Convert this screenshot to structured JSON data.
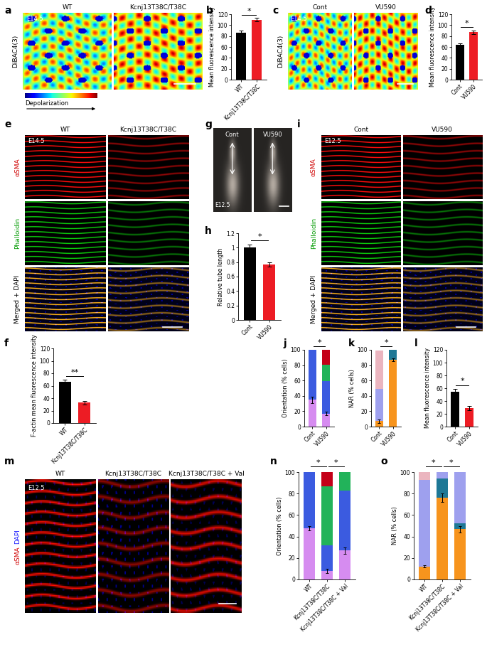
{
  "chart_data": [
    {
      "label": "b",
      "type": "bar",
      "categories": [
        "WT",
        "Kcnj13T38C/T38C"
      ],
      "values": [
        86,
        110
      ],
      "errors": [
        4,
        3
      ],
      "colors": [
        "#000000",
        "#ed1c24"
      ],
      "ylabel": "Mean fluorescence intensity",
      "ylim": [
        0,
        120
      ],
      "yticks": [
        0,
        20,
        40,
        60,
        80,
        100,
        120
      ],
      "significance": [
        {
          "text": "*",
          "between": [
            "WT",
            "Kcnj13T38C/T38C"
          ]
        }
      ]
    },
    {
      "label": "d",
      "type": "bar",
      "categories": [
        "Cont",
        "VU590"
      ],
      "values": [
        64,
        87
      ],
      "errors": [
        2,
        3
      ],
      "colors": [
        "#000000",
        "#ed1c24"
      ],
      "ylabel": "Mean fluorescence intensity",
      "ylim": [
        0,
        120
      ],
      "yticks": [
        0,
        20,
        40,
        60,
        80,
        100,
        120
      ],
      "significance": [
        {
          "text": "*",
          "between": [
            "Cont",
            "VU590"
          ]
        }
      ]
    },
    {
      "label": "f",
      "type": "bar",
      "categories": [
        "WT",
        "Kcnj13T38C/T38C"
      ],
      "values": [
        66,
        33
      ],
      "errors": [
        4,
        3
      ],
      "colors": [
        "#000000",
        "#ed1c24"
      ],
      "ylabel": "F-actin mean fluorescence intensity",
      "ylim": [
        0,
        120
      ],
      "yticks": [
        0,
        20,
        40,
        60,
        80,
        100,
        120
      ],
      "significance": [
        {
          "text": "**",
          "between": [
            "WT",
            "Kcnj13T38C/T38C"
          ]
        }
      ]
    },
    {
      "label": "h",
      "type": "bar",
      "categories": [
        "Cont",
        "VU590"
      ],
      "values": [
        1,
        0.77
      ],
      "errors": [
        0.04,
        0.03
      ],
      "colors": [
        "#000000",
        "#ed1c24"
      ],
      "ylabel": "Relative tube length",
      "ylim": [
        0,
        1.2
      ],
      "yticks": [
        0,
        0.2,
        0.4,
        0.6,
        0.8,
        1,
        1.2
      ],
      "significance": [
        {
          "text": "*",
          "between": [
            "Cont",
            "VU590"
          ]
        }
      ]
    },
    {
      "label": "j",
      "type": "bar",
      "stacked": true,
      "categories": [
        "Cont",
        "VU590"
      ],
      "ylabel": "Orientation (% cells)",
      "ylim": [
        0,
        100
      ],
      "yticks": [
        0,
        20,
        40,
        60,
        80,
        100
      ],
      "series": [
        {
          "color": "#d68cf0",
          "values": [
            35,
            17
          ],
          "errors": [
            4,
            2
          ]
        },
        {
          "color": "#3b5be0",
          "values": [
            65,
            42
          ]
        },
        {
          "color": "#22b35a",
          "values": [
            0,
            22
          ]
        },
        {
          "color": "#c40018",
          "values": [
            0,
            19
          ]
        }
      ],
      "significance": [
        {
          "text": "*",
          "between": [
            "Cont",
            "VU590"
          ]
        }
      ]
    },
    {
      "label": "k",
      "type": "bar",
      "stacked": true,
      "categories": [
        "Cont",
        "VU590"
      ],
      "ylabel": "NAR (% cells)",
      "ylim": [
        0,
        100
      ],
      "yticks": [
        0,
        20,
        40,
        60,
        80,
        100
      ],
      "series": [
        {
          "color": "#f7941d",
          "values": [
            7,
            87
          ],
          "errors": [
            2,
            2
          ]
        },
        {
          "color": "#1e7896",
          "values": [
            0,
            13
          ]
        },
        {
          "color": "#9ea0ee",
          "values": [
            42,
            0
          ]
        },
        {
          "color": "#ebb5bf",
          "values": [
            50,
            0
          ]
        }
      ],
      "significance": [
        {
          "text": "*",
          "between": [
            "Cont",
            "VU590"
          ]
        }
      ]
    },
    {
      "label": "l",
      "type": "bar",
      "categories": [
        "Cont",
        "VU590"
      ],
      "values": [
        55,
        29
      ],
      "errors": [
        4,
        3
      ],
      "colors": [
        "#000000",
        "#ed1c24"
      ],
      "ylabel": "Mean fluorescence intensity",
      "ylim": [
        0,
        120
      ],
      "yticks": [
        0,
        20,
        40,
        60,
        80,
        100,
        120
      ],
      "significance": [
        {
          "text": "*",
          "between": [
            "Cont",
            "VU590"
          ]
        }
      ]
    },
    {
      "label": "n",
      "type": "bar",
      "stacked": true,
      "categories": [
        "WT",
        "Kcnj13T38C/T38C",
        "Kcnj13T38C/T38C + Val"
      ],
      "ylabel": "Orientation (% cells)",
      "ylim": [
        0,
        100
      ],
      "yticks": [
        0,
        20,
        40,
        60,
        80,
        100
      ],
      "series": [
        {
          "color": "#d68cf0",
          "values": [
            48,
            8,
            27
          ],
          "errors": [
            2,
            2,
            3
          ]
        },
        {
          "color": "#3b5be0",
          "values": [
            52,
            24,
            56
          ]
        },
        {
          "color": "#22b35a",
          "values": [
            0,
            55,
            17
          ]
        },
        {
          "color": "#c40018",
          "values": [
            0,
            13,
            0
          ]
        }
      ],
      "significance": [
        {
          "text": "*",
          "between": [
            "WT",
            "Kcnj13T38C/T38C"
          ]
        },
        {
          "text": "*",
          "between": [
            "Kcnj13T38C/T38C",
            "Kcnj13T38C/T38C + Val"
          ]
        }
      ]
    },
    {
      "label": "o",
      "type": "bar",
      "stacked": true,
      "categories": [
        "WT",
        "Kcnj13T38C/T38C",
        "Kcnj13T38C/T38C + Val"
      ],
      "ylabel": "NAR (% cells)",
      "ylim": [
        0,
        100
      ],
      "yticks": [
        0,
        20,
        40,
        60,
        80,
        100
      ],
      "series": [
        {
          "color": "#f7941d",
          "values": [
            12,
            76,
            47
          ],
          "errors": [
            1,
            4,
            3
          ]
        },
        {
          "color": "#1e7896",
          "values": [
            0,
            18,
            5
          ]
        },
        {
          "color": "#9ea0ee",
          "values": [
            81,
            6,
            48
          ]
        },
        {
          "color": "#ebb5bf",
          "values": [
            7,
            0,
            0
          ]
        }
      ],
      "significance": [
        {
          "text": "*",
          "between": [
            "WT",
            "Kcnj13T38C/T38C"
          ]
        },
        {
          "text": "*",
          "between": [
            "Kcnj13T38C/T38C",
            "Kcnj13T38C/T38C + Val"
          ]
        }
      ]
    }
  ],
  "image_panels": [
    {
      "label": "a",
      "kind": "dye",
      "stage": "E14.5",
      "columns": [
        "WT",
        "Kcnj13T38C/T38C"
      ],
      "rows": [
        "DiBAC4(3)"
      ],
      "colorbar_label": "Depolarization"
    },
    {
      "label": "c",
      "kind": "dye",
      "stage": "E14.5",
      "columns": [
        "Cont",
        "VU590"
      ],
      "rows": [
        "DiBAC4(3)"
      ]
    },
    {
      "label": "e",
      "kind": "stain",
      "stage": "E14.5",
      "columns": [
        "WT",
        "Kcnj13T38C/T38C"
      ],
      "rows": [
        "αSMA",
        "Phalloidin",
        "Merged + DAPI"
      ]
    },
    {
      "label": "g",
      "kind": "photo",
      "stage": "E12.5",
      "columns": [
        "Cont",
        "VU590"
      ]
    },
    {
      "label": "i",
      "kind": "stain",
      "stage": "E12.5",
      "columns": [
        "Cont",
        "VU590"
      ],
      "rows": [
        "αSMA",
        "Phalloidin",
        "Merged + DAPI"
      ]
    },
    {
      "label": "m",
      "kind": "stain_dapi",
      "stage": "E12.5",
      "columns": [
        "WT",
        "Kcnj13T38C/T38C",
        "Kcnj13T38C/T38C + Val"
      ],
      "rows": [
        [
          "αSMA",
          "DAPI"
        ]
      ]
    }
  ]
}
